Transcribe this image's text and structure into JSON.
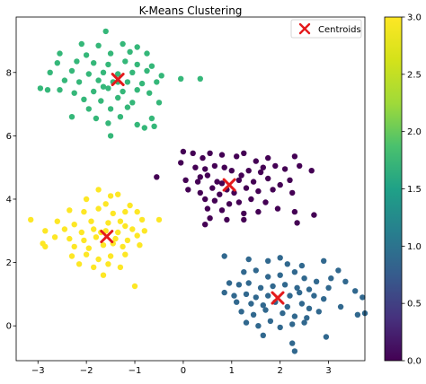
{
  "chart_data": {
    "type": "scatter",
    "title": "K-Means Clustering",
    "xlabel": "",
    "ylabel": "",
    "xlim": [
      -3.45,
      3.75
    ],
    "ylim": [
      -1.1,
      9.75
    ],
    "xticks": [
      -3,
      -2,
      -1,
      0,
      1,
      2,
      3
    ],
    "yticks": [
      0,
      2,
      4,
      6,
      8
    ],
    "grid": false,
    "legend": {
      "placement": "top-right",
      "entries": [
        "Centroids"
      ]
    },
    "colormap": "viridis",
    "colorbar": {
      "range": [
        0,
        3
      ],
      "ticks": [
        "0.0",
        "0.5",
        "1.0",
        "1.5",
        "2.0",
        "2.5",
        "3.0"
      ]
    },
    "clusters": [
      {
        "label": 0,
        "color": "#440154",
        "points": [
          [
            0.0,
            5.5
          ],
          [
            0.2,
            5.45
          ],
          [
            0.4,
            5.3
          ],
          [
            0.55,
            5.45
          ],
          [
            0.8,
            5.4
          ],
          [
            1.1,
            5.35
          ],
          [
            1.25,
            5.45
          ],
          [
            1.5,
            5.2
          ],
          [
            1.75,
            5.3
          ],
          [
            1.9,
            5.05
          ],
          [
            -0.05,
            5.15
          ],
          [
            0.25,
            5.0
          ],
          [
            0.45,
            4.95
          ],
          [
            0.65,
            5.05
          ],
          [
            0.85,
            5.0
          ],
          [
            1.0,
            4.9
          ],
          [
            1.35,
            4.9
          ],
          [
            1.6,
            4.85
          ],
          [
            2.1,
            4.95
          ],
          [
            2.4,
            5.05
          ],
          [
            2.65,
            4.9
          ],
          [
            2.3,
            5.35
          ],
          [
            -0.55,
            4.7
          ],
          [
            0.05,
            4.6
          ],
          [
            0.3,
            4.55
          ],
          [
            0.5,
            4.75
          ],
          [
            0.7,
            4.55
          ],
          [
            1.15,
            4.6
          ],
          [
            1.45,
            4.55
          ],
          [
            1.75,
            4.65
          ],
          [
            2.0,
            4.45
          ],
          [
            2.2,
            4.6
          ],
          [
            0.1,
            4.3
          ],
          [
            0.35,
            4.2
          ],
          [
            0.6,
            4.35
          ],
          [
            0.75,
            4.15
          ],
          [
            0.9,
            4.3
          ],
          [
            1.05,
            4.2
          ],
          [
            1.3,
            4.35
          ],
          [
            1.55,
            4.25
          ],
          [
            1.85,
            4.3
          ],
          [
            2.25,
            4.2
          ],
          [
            0.45,
            4.0
          ],
          [
            0.65,
            3.95
          ],
          [
            0.95,
            3.85
          ],
          [
            1.15,
            3.9
          ],
          [
            1.4,
            4.0
          ],
          [
            1.7,
            3.9
          ],
          [
            0.5,
            3.7
          ],
          [
            0.8,
            3.65
          ],
          [
            1.25,
            3.55
          ],
          [
            1.55,
            3.6
          ],
          [
            1.95,
            3.7
          ],
          [
            2.3,
            3.6
          ],
          [
            0.55,
            3.4
          ],
          [
            0.9,
            3.35
          ],
          [
            1.25,
            3.35
          ],
          [
            0.45,
            3.2
          ],
          [
            2.35,
            3.25
          ],
          [
            2.7,
            3.5
          ],
          [
            0.8,
            4.5
          ],
          [
            1.2,
            4.75
          ],
          [
            0.35,
            4.7
          ],
          [
            1.65,
            5.0
          ]
        ]
      },
      {
        "label": 1,
        "color": "#31688e",
        "points": [
          [
            0.85,
            2.2
          ],
          [
            1.35,
            2.1
          ],
          [
            1.75,
            2.05
          ],
          [
            2.0,
            2.15
          ],
          [
            2.15,
            1.95
          ],
          [
            2.45,
            1.9
          ],
          [
            2.9,
            2.05
          ],
          [
            3.2,
            1.75
          ],
          [
            1.25,
            1.7
          ],
          [
            1.5,
            1.75
          ],
          [
            1.75,
            1.55
          ],
          [
            2.0,
            1.6
          ],
          [
            2.3,
            1.7
          ],
          [
            2.5,
            1.5
          ],
          [
            2.75,
            1.4
          ],
          [
            3.05,
            1.5
          ],
          [
            3.35,
            1.4
          ],
          [
            0.95,
            1.35
          ],
          [
            1.15,
            1.3
          ],
          [
            1.35,
            1.35
          ],
          [
            1.6,
            1.2
          ],
          [
            1.85,
            1.25
          ],
          [
            2.1,
            1.3
          ],
          [
            2.35,
            1.2
          ],
          [
            2.6,
            1.15
          ],
          [
            3.0,
            1.2
          ],
          [
            3.55,
            1.1
          ],
          [
            0.85,
            1.05
          ],
          [
            1.05,
            0.95
          ],
          [
            1.3,
            1.0
          ],
          [
            1.5,
            0.9
          ],
          [
            1.75,
            0.95
          ],
          [
            2.2,
            0.95
          ],
          [
            2.4,
            1.05
          ],
          [
            2.7,
            0.95
          ],
          [
            2.9,
            0.85
          ],
          [
            3.7,
            0.9
          ],
          [
            1.1,
            0.75
          ],
          [
            1.4,
            0.7
          ],
          [
            1.65,
            0.65
          ],
          [
            1.9,
            0.75
          ],
          [
            2.15,
            0.6
          ],
          [
            2.45,
            0.7
          ],
          [
            2.6,
            0.55
          ],
          [
            2.8,
            0.45
          ],
          [
            3.25,
            0.6
          ],
          [
            1.2,
            0.45
          ],
          [
            1.45,
            0.35
          ],
          [
            1.7,
            0.5
          ],
          [
            2.05,
            0.4
          ],
          [
            2.3,
            0.3
          ],
          [
            2.55,
            0.25
          ],
          [
            3.6,
            0.35
          ],
          [
            1.3,
            0.1
          ],
          [
            1.55,
            0.0
          ],
          [
            1.8,
            0.15
          ],
          [
            2.0,
            -0.05
          ],
          [
            2.25,
            0.05
          ],
          [
            2.5,
            0.1
          ],
          [
            1.65,
            -0.3
          ],
          [
            2.95,
            -0.35
          ],
          [
            2.25,
            -0.55
          ],
          [
            2.3,
            -0.8
          ],
          [
            3.75,
            0.4
          ]
        ]
      },
      {
        "label": 2,
        "color": "#35b779",
        "points": [
          [
            -1.6,
            9.3
          ],
          [
            -2.1,
            8.9
          ],
          [
            -1.75,
            8.85
          ],
          [
            -1.25,
            8.9
          ],
          [
            -0.95,
            8.8
          ],
          [
            -2.55,
            8.6
          ],
          [
            -2.0,
            8.55
          ],
          [
            -1.5,
            8.6
          ],
          [
            -1.1,
            8.65
          ],
          [
            -0.75,
            8.6
          ],
          [
            -2.6,
            8.3
          ],
          [
            -2.2,
            8.35
          ],
          [
            -1.85,
            8.3
          ],
          [
            -1.55,
            8.25
          ],
          [
            -1.2,
            8.35
          ],
          [
            -0.95,
            8.25
          ],
          [
            -0.65,
            8.2
          ],
          [
            -2.75,
            8.0
          ],
          [
            -2.3,
            8.05
          ],
          [
            -1.95,
            7.95
          ],
          [
            -1.65,
            8.0
          ],
          [
            -1.35,
            7.95
          ],
          [
            -1.05,
            8.0
          ],
          [
            -0.75,
            8.05
          ],
          [
            -0.45,
            7.9
          ],
          [
            -2.45,
            7.75
          ],
          [
            -2.15,
            7.7
          ],
          [
            -1.75,
            7.75
          ],
          [
            -1.45,
            7.7
          ],
          [
            -1.15,
            7.7
          ],
          [
            -0.85,
            7.65
          ],
          [
            -0.55,
            7.7
          ],
          [
            -0.05,
            7.8
          ],
          [
            0.35,
            7.8
          ],
          [
            -2.95,
            7.5
          ],
          [
            -2.55,
            7.45
          ],
          [
            -2.25,
            7.35
          ],
          [
            -1.85,
            7.4
          ],
          [
            -1.55,
            7.5
          ],
          [
            -1.25,
            7.4
          ],
          [
            -0.95,
            7.45
          ],
          [
            -0.7,
            7.35
          ],
          [
            -2.05,
            7.15
          ],
          [
            -1.7,
            7.1
          ],
          [
            -1.35,
            7.2
          ],
          [
            -1.05,
            7.05
          ],
          [
            -0.5,
            7.05
          ],
          [
            -1.95,
            6.85
          ],
          [
            -1.5,
            6.85
          ],
          [
            -1.15,
            6.9
          ],
          [
            -2.3,
            6.6
          ],
          [
            -1.8,
            6.55
          ],
          [
            -1.3,
            6.6
          ],
          [
            -0.65,
            6.55
          ],
          [
            -1.55,
            6.4
          ],
          [
            -0.95,
            6.35
          ],
          [
            -0.8,
            6.25
          ],
          [
            -0.6,
            6.3
          ],
          [
            -1.5,
            6.0
          ],
          [
            -2.8,
            7.45
          ],
          [
            -1.35,
            7.7
          ],
          [
            -1.65,
            7.55
          ]
        ]
      },
      {
        "label": 3,
        "color": "#fde725",
        "points": [
          [
            -1.75,
            4.3
          ],
          [
            -1.5,
            4.1
          ],
          [
            -1.35,
            4.15
          ],
          [
            -2.0,
            4.0
          ],
          [
            -1.6,
            3.85
          ],
          [
            -1.1,
            3.8
          ],
          [
            -2.35,
            3.65
          ],
          [
            -2.05,
            3.6
          ],
          [
            -1.75,
            3.7
          ],
          [
            -1.45,
            3.55
          ],
          [
            -1.2,
            3.6
          ],
          [
            -0.95,
            3.6
          ],
          [
            -3.15,
            3.35
          ],
          [
            -2.6,
            3.3
          ],
          [
            -2.25,
            3.2
          ],
          [
            -1.9,
            3.3
          ],
          [
            -1.55,
            3.25
          ],
          [
            -1.3,
            3.3
          ],
          [
            -0.85,
            3.35
          ],
          [
            -0.5,
            3.35
          ],
          [
            -2.85,
            3.0
          ],
          [
            -2.45,
            3.05
          ],
          [
            -2.1,
            2.95
          ],
          [
            -1.85,
            3.05
          ],
          [
            -1.6,
            3.0
          ],
          [
            -1.35,
            2.95
          ],
          [
            -1.05,
            3.05
          ],
          [
            -0.8,
            3.0
          ],
          [
            -2.65,
            2.8
          ],
          [
            -2.35,
            2.75
          ],
          [
            -2.05,
            2.7
          ],
          [
            -1.8,
            2.8
          ],
          [
            -1.4,
            2.75
          ],
          [
            -1.15,
            2.7
          ],
          [
            -0.95,
            2.85
          ],
          [
            -2.9,
            2.6
          ],
          [
            -2.25,
            2.5
          ],
          [
            -1.95,
            2.45
          ],
          [
            -1.65,
            2.55
          ],
          [
            -1.25,
            2.5
          ],
          [
            -0.9,
            2.55
          ],
          [
            -2.3,
            2.2
          ],
          [
            -2.0,
            2.25
          ],
          [
            -1.75,
            2.1
          ],
          [
            -1.5,
            2.2
          ],
          [
            -1.2,
            2.25
          ],
          [
            -2.15,
            1.95
          ],
          [
            -1.85,
            1.85
          ],
          [
            -1.55,
            1.95
          ],
          [
            -1.3,
            1.85
          ],
          [
            -1.65,
            1.6
          ],
          [
            -2.85,
            2.5
          ],
          [
            -1.0,
            1.25
          ],
          [
            -1.2,
            3.15
          ],
          [
            -1.45,
            2.6
          ],
          [
            -1.7,
            2.95
          ]
        ]
      }
    ],
    "centroids": [
      [
        0.95,
        4.45
      ],
      [
        1.95,
        0.88
      ],
      [
        -1.35,
        7.78
      ],
      [
        -1.58,
        2.82
      ]
    ],
    "centroid_color": "#e41a1c"
  }
}
